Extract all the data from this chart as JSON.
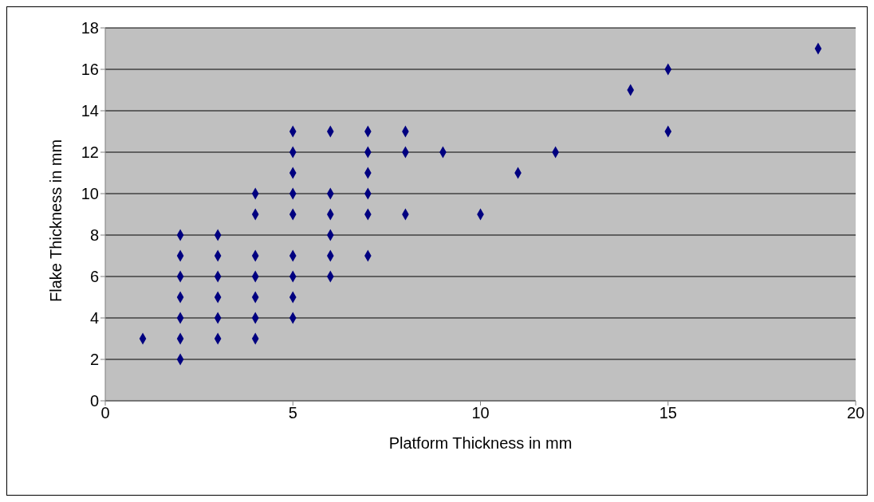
{
  "chart_data": {
    "type": "scatter",
    "xlabel": "Platform Thickness in mm",
    "ylabel": "Flake Thickness in mm",
    "x": [
      1,
      2,
      2,
      2,
      2,
      2,
      2,
      2,
      3,
      3,
      3,
      3,
      3,
      3,
      4,
      4,
      4,
      4,
      4,
      4,
      4,
      5,
      5,
      5,
      5,
      5,
      5,
      5,
      5,
      5,
      6,
      6,
      6,
      6,
      6,
      6,
      7,
      7,
      7,
      7,
      7,
      7,
      8,
      8,
      8,
      9,
      10,
      11,
      12,
      14,
      15,
      15,
      19
    ],
    "series": [
      {
        "color": "#000080",
        "values": [
          3,
          8,
          7,
          6,
          5,
          4,
          3,
          2,
          8,
          7,
          6,
          5,
          4,
          3,
          10,
          9,
          7,
          6,
          5,
          4,
          3,
          13,
          12,
          11,
          10,
          9,
          7,
          6,
          5,
          4,
          13,
          10,
          9,
          8,
          7,
          6,
          13,
          12,
          11,
          10,
          9,
          7,
          13,
          12,
          9,
          12,
          9,
          11,
          12,
          15,
          16,
          13,
          17
        ]
      }
    ],
    "xlim": [
      0,
      20
    ],
    "xticks": [
      0,
      5,
      10,
      15,
      20
    ],
    "ylim": [
      0,
      18
    ],
    "yticks": [
      0,
      2,
      4,
      6,
      8,
      10,
      12,
      14,
      16,
      18
    ],
    "grid": "y",
    "legend": false,
    "marker": "diamond"
  }
}
